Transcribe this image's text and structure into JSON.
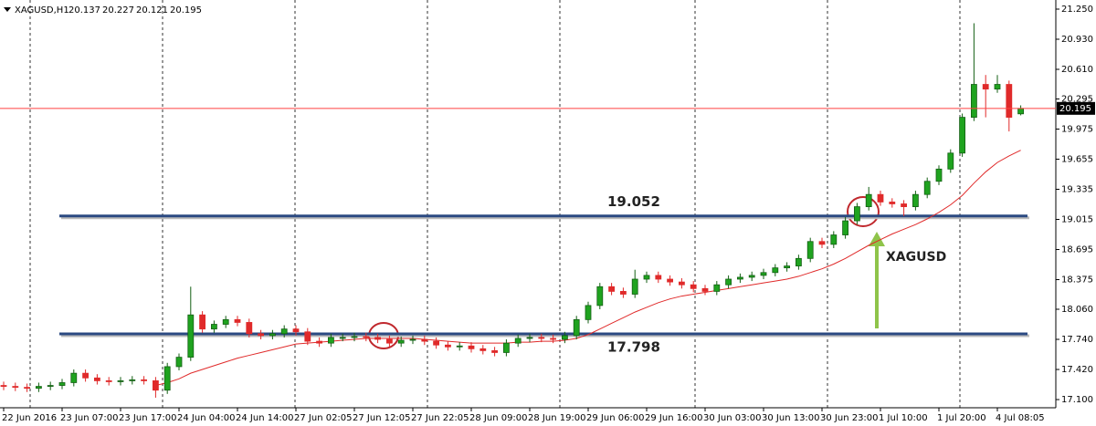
{
  "chart_data": {
    "type": "candlestick",
    "title": "XAGUSD,H1",
    "ylim": [
      17.013,
      21.347
    ],
    "yticks": [
      {
        "value": 21.25,
        "label": "21.250"
      },
      {
        "value": 20.93,
        "label": "20.930"
      },
      {
        "value": 20.61,
        "label": "20.610"
      },
      {
        "value": 20.295,
        "label": "20.295"
      },
      {
        "value": 19.975,
        "label": "19.975"
      },
      {
        "value": 19.655,
        "label": "19.655"
      },
      {
        "value": 19.335,
        "label": "19.335"
      },
      {
        "value": 19.015,
        "label": "19.015"
      },
      {
        "value": 18.695,
        "label": "18.695"
      },
      {
        "value": 18.375,
        "label": "18.375"
      },
      {
        "value": 18.06,
        "label": "18.060"
      },
      {
        "value": 17.74,
        "label": "17.740"
      },
      {
        "value": 17.42,
        "label": "17.420"
      },
      {
        "value": 17.1,
        "label": "17.100"
      }
    ],
    "categories": [
      "22 Jun 2016",
      null,
      null,
      null,
      null,
      "23 Jun 07:00",
      null,
      null,
      null,
      null,
      "23 Jun 17:00",
      null,
      null,
      null,
      null,
      "24 Jun 04:00",
      null,
      null,
      null,
      null,
      "24 Jun 14:00",
      null,
      null,
      null,
      null,
      "27 Jun 02:05",
      null,
      null,
      null,
      null,
      "27 Jun 12:05",
      null,
      null,
      null,
      null,
      "27 Jun 22:05",
      null,
      null,
      null,
      null,
      "28 Jun 09:00",
      null,
      null,
      null,
      null,
      "28 Jun 19:00",
      null,
      null,
      null,
      null,
      "29 Jun 06:00",
      null,
      null,
      null,
      null,
      "29 Jun 16:00",
      null,
      null,
      null,
      null,
      "30 Jun 03:00",
      null,
      null,
      null,
      null,
      "30 Jun 13:00",
      null,
      null,
      null,
      null,
      "30 Jun 23:00",
      null,
      null,
      null,
      null,
      "1 Jul 10:00",
      null,
      null,
      null,
      null,
      "1 Jul 20:00",
      null,
      null,
      null,
      null,
      "4 Jul 08:05",
      null,
      null
    ],
    "open": [
      17.25,
      17.24,
      17.23,
      17.22,
      17.24,
      17.25,
      17.28,
      17.38,
      17.33,
      17.3,
      17.29,
      17.3,
      17.31,
      17.3,
      17.2,
      17.45,
      17.55,
      18.0,
      17.85,
      17.9,
      17.95,
      17.92,
      17.8,
      17.78,
      17.8,
      17.85,
      17.82,
      17.72,
      17.7,
      17.76,
      17.76,
      17.77,
      17.76,
      17.74,
      17.7,
      17.73,
      17.74,
      17.72,
      17.68,
      17.66,
      17.67,
      17.64,
      17.62,
      17.6,
      17.7,
      17.75,
      17.76,
      17.75,
      17.74,
      17.78,
      17.95,
      18.1,
      18.3,
      18.25,
      18.22,
      18.38,
      18.42,
      18.38,
      18.35,
      18.32,
      18.28,
      18.25,
      18.32,
      18.38,
      18.4,
      18.42,
      18.45,
      18.5,
      18.52,
      18.6,
      18.78,
      18.75,
      18.85,
      19.0,
      19.15,
      19.28,
      19.2,
      19.18,
      19.15,
      19.28,
      19.42,
      19.55,
      19.72,
      20.1,
      20.45,
      20.4,
      20.45,
      20.137
    ],
    "high": [
      17.29,
      17.28,
      17.27,
      17.28,
      17.29,
      17.32,
      17.42,
      17.42,
      17.37,
      17.34,
      17.34,
      17.35,
      17.35,
      17.34,
      17.49,
      17.59,
      18.3,
      18.04,
      17.94,
      17.99,
      17.99,
      17.96,
      17.84,
      17.84,
      17.89,
      17.89,
      17.86,
      17.76,
      17.8,
      17.8,
      17.81,
      17.81,
      17.8,
      17.78,
      17.77,
      17.78,
      17.78,
      17.76,
      17.72,
      17.71,
      17.71,
      17.68,
      17.66,
      17.74,
      17.79,
      17.8,
      17.8,
      17.79,
      17.82,
      17.99,
      18.14,
      18.34,
      18.34,
      18.29,
      18.48,
      18.46,
      18.46,
      18.42,
      18.39,
      18.36,
      18.32,
      18.36,
      18.42,
      18.44,
      18.46,
      18.49,
      18.54,
      18.56,
      18.64,
      18.82,
      18.82,
      18.89,
      19.04,
      19.19,
      19.36,
      19.32,
      19.24,
      19.22,
      19.32,
      19.46,
      19.59,
      19.76,
      20.14,
      21.1,
      20.55,
      20.55,
      20.49,
      20.227
    ],
    "low": [
      17.2,
      17.19,
      17.18,
      17.18,
      17.2,
      17.21,
      17.24,
      17.29,
      17.26,
      17.25,
      17.25,
      17.26,
      17.26,
      17.12,
      17.16,
      17.41,
      17.51,
      17.81,
      17.81,
      17.86,
      17.88,
      17.76,
      17.74,
      17.74,
      17.76,
      17.78,
      17.68,
      17.66,
      17.66,
      17.72,
      17.72,
      17.72,
      17.7,
      17.66,
      17.66,
      17.69,
      17.68,
      17.64,
      17.62,
      17.62,
      17.6,
      17.58,
      17.56,
      17.56,
      17.66,
      17.71,
      17.71,
      17.7,
      17.7,
      17.74,
      17.91,
      18.06,
      18.21,
      18.18,
      18.18,
      18.34,
      18.34,
      18.31,
      18.28,
      18.24,
      18.21,
      18.21,
      18.28,
      18.34,
      18.36,
      18.38,
      18.41,
      18.46,
      18.48,
      18.56,
      18.71,
      18.71,
      18.81,
      18.96,
      19.11,
      19.16,
      19.14,
      19.05,
      19.11,
      19.24,
      19.38,
      19.51,
      19.68,
      20.06,
      20.1,
      20.36,
      19.95,
      20.121
    ],
    "close": [
      17.24,
      17.23,
      17.22,
      17.24,
      17.25,
      17.28,
      17.38,
      17.33,
      17.3,
      17.29,
      17.3,
      17.31,
      17.3,
      17.2,
      17.45,
      17.55,
      18.0,
      17.85,
      17.9,
      17.95,
      17.92,
      17.8,
      17.78,
      17.8,
      17.85,
      17.82,
      17.72,
      17.7,
      17.76,
      17.76,
      17.77,
      17.76,
      17.74,
      17.7,
      17.73,
      17.74,
      17.72,
      17.68,
      17.66,
      17.67,
      17.64,
      17.62,
      17.6,
      17.7,
      17.75,
      17.76,
      17.75,
      17.74,
      17.78,
      17.95,
      18.1,
      18.3,
      18.25,
      18.22,
      18.38,
      18.42,
      18.38,
      18.35,
      18.32,
      18.28,
      18.25,
      18.32,
      18.38,
      18.4,
      18.42,
      18.45,
      18.5,
      18.52,
      18.6,
      18.78,
      18.75,
      18.85,
      19.0,
      19.15,
      19.28,
      19.2,
      19.18,
      19.15,
      19.28,
      19.42,
      19.55,
      19.72,
      20.1,
      20.45,
      20.4,
      20.45,
      20.1,
      20.195
    ],
    "ma": [
      null,
      null,
      null,
      null,
      null,
      null,
      null,
      null,
      null,
      null,
      null,
      null,
      null,
      17.25,
      17.28,
      17.32,
      17.38,
      17.42,
      17.46,
      17.5,
      17.54,
      17.57,
      17.6,
      17.63,
      17.66,
      17.69,
      17.7,
      17.71,
      17.72,
      17.73,
      17.74,
      17.75,
      17.75,
      17.75,
      17.75,
      17.75,
      17.74,
      17.73,
      17.72,
      17.71,
      17.7,
      17.7,
      17.7,
      17.7,
      17.71,
      17.71,
      17.72,
      17.72,
      17.73,
      17.75,
      17.79,
      17.85,
      17.91,
      17.97,
      18.03,
      18.08,
      18.13,
      18.17,
      18.2,
      18.22,
      18.24,
      18.26,
      18.28,
      18.3,
      18.32,
      18.34,
      18.36,
      18.38,
      18.41,
      18.45,
      18.49,
      18.54,
      18.6,
      18.67,
      18.74,
      18.8,
      18.86,
      18.91,
      18.96,
      19.02,
      19.09,
      19.17,
      19.27,
      19.4,
      19.52,
      19.62,
      19.69,
      19.75
    ],
    "up_color": "#1fa31f",
    "down_color": "#e02a2a",
    "ma_color": "#e02a2a",
    "price_line_color": "#ff4040",
    "levels": [
      {
        "value": 19.052,
        "color": "#2b4a82"
      },
      {
        "value": 17.798,
        "color": "#2b4a82"
      }
    ],
    "annotation": "XAGUSD"
  }
}
